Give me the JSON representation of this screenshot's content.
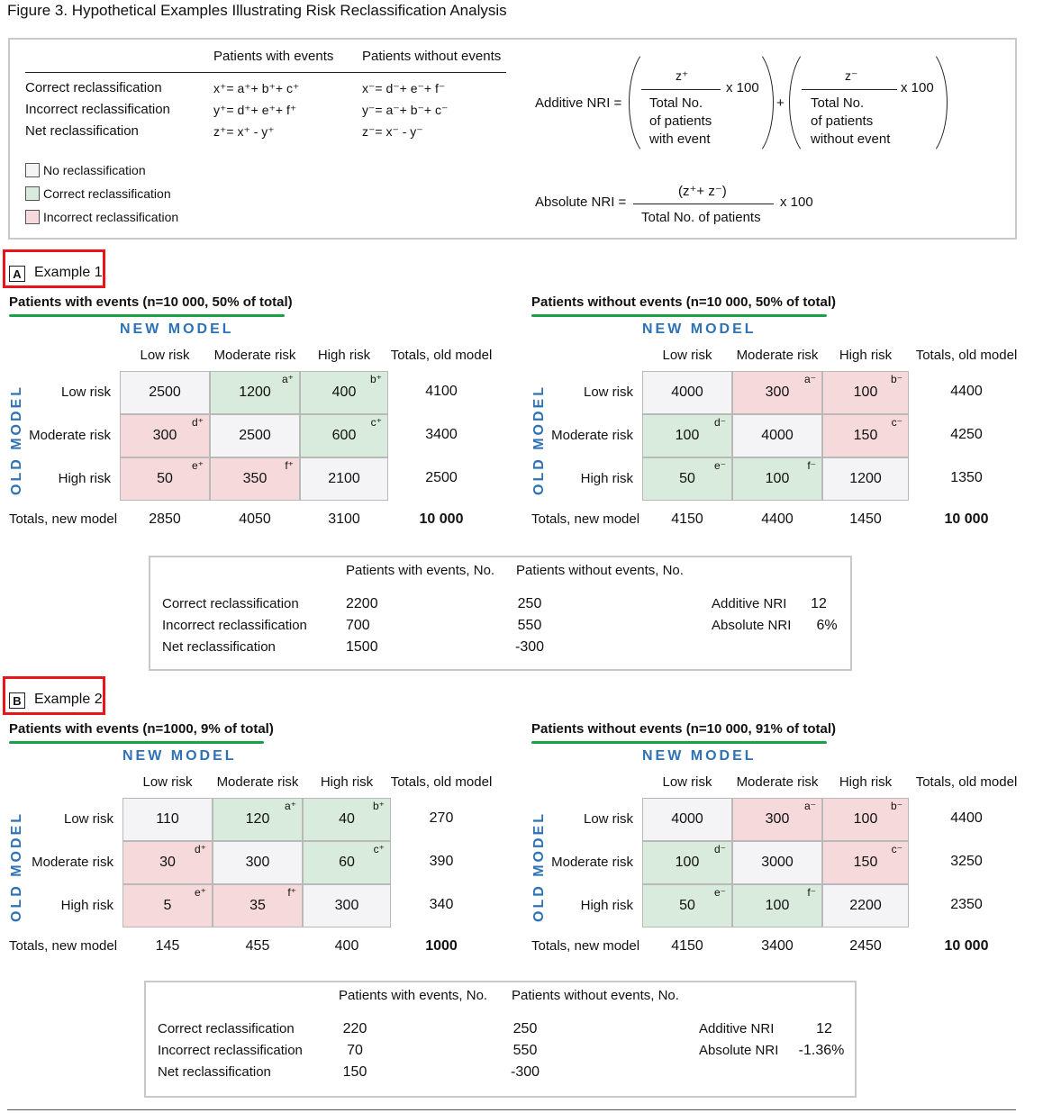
{
  "figure_title": "Figure 3. Hypothetical Examples Illustrating Risk Reclassification Analysis",
  "header": {
    "col_events": "Patients with events",
    "col_no_events": "Patients without events",
    "rows": [
      {
        "label": "Correct reclassification",
        "events": "x⁺= a⁺+ b⁺+ c⁺",
        "no_events": "x⁻= d⁻+ e⁻+ f⁻"
      },
      {
        "label": "Incorrect reclassification",
        "events": "y⁺= d⁺+ e⁺+ f⁺",
        "no_events": "y⁻= a⁻+ b⁻+ c⁻"
      },
      {
        "label": "Net reclassification",
        "events": "z⁺= x⁺ - y⁺",
        "no_events": "z⁻= x⁻ - y⁻"
      }
    ],
    "legend": [
      {
        "label": "No reclassification",
        "color": "#f4f4f6"
      },
      {
        "label": "Correct reclassification",
        "color": "#d9ebdc"
      },
      {
        "label": "Incorrect reclassification",
        "color": "#f5d9db"
      }
    ],
    "additive_nri_label": "Additive NRI =",
    "frac1_num": "z⁺",
    "frac1_den": [
      "Total No.",
      "of patients",
      "with event"
    ],
    "frac2_num": "z⁻",
    "frac2_den": [
      "Total No.",
      "of patients",
      "without event"
    ],
    "times100": "x 100",
    "plus": "+",
    "absolute_nri_label": "Absolute NRI =",
    "abs_num": "(z⁺+ z⁻)",
    "abs_den": "Total No. of patients"
  },
  "common": {
    "new_model": "NEW MODEL",
    "old_model": "OLD MODEL",
    "col_headers": [
      "Low risk",
      "Moderate risk",
      "High risk",
      "Totals, old model"
    ],
    "row_headers": [
      "Low risk",
      "Moderate risk",
      "High risk"
    ],
    "totals_new": "Totals, new model",
    "sum_col_events": "Patients with events, No.",
    "sum_col_no_events": "Patients without events, No.",
    "sum_rows": [
      "Correct reclassification",
      "Incorrect reclassification",
      "Net reclassification"
    ],
    "additive_nri": "Additive NRI",
    "absolute_nri": "Absolute NRI"
  },
  "examples": [
    {
      "letter": "A",
      "name": "Example 1",
      "events_title": "Patients with events (n=10 000, 50% of total)",
      "no_events_title": "Patients without events (n=10 000, 50% of total)",
      "events": {
        "cells": [
          [
            "2500",
            "1200",
            "400"
          ],
          [
            "300",
            "2500",
            "600"
          ],
          [
            "50",
            "350",
            "2100"
          ]
        ],
        "sups": [
          [
            "",
            "a⁺",
            "b⁺"
          ],
          [
            "d⁺",
            "",
            "c⁺"
          ],
          [
            "e⁺",
            "f⁺",
            ""
          ]
        ],
        "row_totals": [
          "4100",
          "3400",
          "2500"
        ],
        "col_totals": [
          "2850",
          "4050",
          "3100",
          "10 000"
        ]
      },
      "no_events": {
        "cells": [
          [
            "4000",
            "300",
            "100"
          ],
          [
            "100",
            "4000",
            "150"
          ],
          [
            "50",
            "100",
            "1200"
          ]
        ],
        "sups": [
          [
            "",
            "a⁻",
            "b⁻"
          ],
          [
            "d⁻",
            "",
            "c⁻"
          ],
          [
            "e⁻",
            "f⁻",
            ""
          ]
        ],
        "row_totals": [
          "4400",
          "4250",
          "1350"
        ],
        "col_totals": [
          "4150",
          "4400",
          "1450",
          "10 000"
        ]
      },
      "summary": {
        "events": [
          "2200",
          "700",
          "1500"
        ],
        "no_events": [
          "250",
          "550",
          "-300"
        ],
        "additive_nri": "12",
        "absolute_nri": "6%"
      }
    },
    {
      "letter": "B",
      "name": "Example 2",
      "events_title": "Patients with events (n=1000, 9% of total)",
      "no_events_title": "Patients without events (n=10 000, 91% of total)",
      "events": {
        "cells": [
          [
            "110",
            "120",
            "40"
          ],
          [
            "30",
            "300",
            "60"
          ],
          [
            "5",
            "35",
            "300"
          ]
        ],
        "sups": [
          [
            "",
            "a⁺",
            "b⁺"
          ],
          [
            "d⁺",
            "",
            "c⁺"
          ],
          [
            "e⁺",
            "f⁺",
            ""
          ]
        ],
        "row_totals": [
          "270",
          "390",
          "340"
        ],
        "col_totals": [
          "145",
          "455",
          "400",
          "1000"
        ]
      },
      "no_events": {
        "cells": [
          [
            "4000",
            "300",
            "100"
          ],
          [
            "100",
            "3000",
            "150"
          ],
          [
            "50",
            "100",
            "2200"
          ]
        ],
        "sups": [
          [
            "",
            "a⁻",
            "b⁻"
          ],
          [
            "d⁻",
            "",
            "c⁻"
          ],
          [
            "e⁻",
            "f⁻",
            ""
          ]
        ],
        "row_totals": [
          "4400",
          "3250",
          "2350"
        ],
        "col_totals": [
          "4150",
          "3400",
          "2450",
          "10 000"
        ]
      },
      "summary": {
        "events": [
          "220",
          "70",
          "150"
        ],
        "no_events": [
          "250",
          "550",
          "-300"
        ],
        "additive_nri": "12",
        "absolute_nri": "-1.36%"
      }
    }
  ]
}
